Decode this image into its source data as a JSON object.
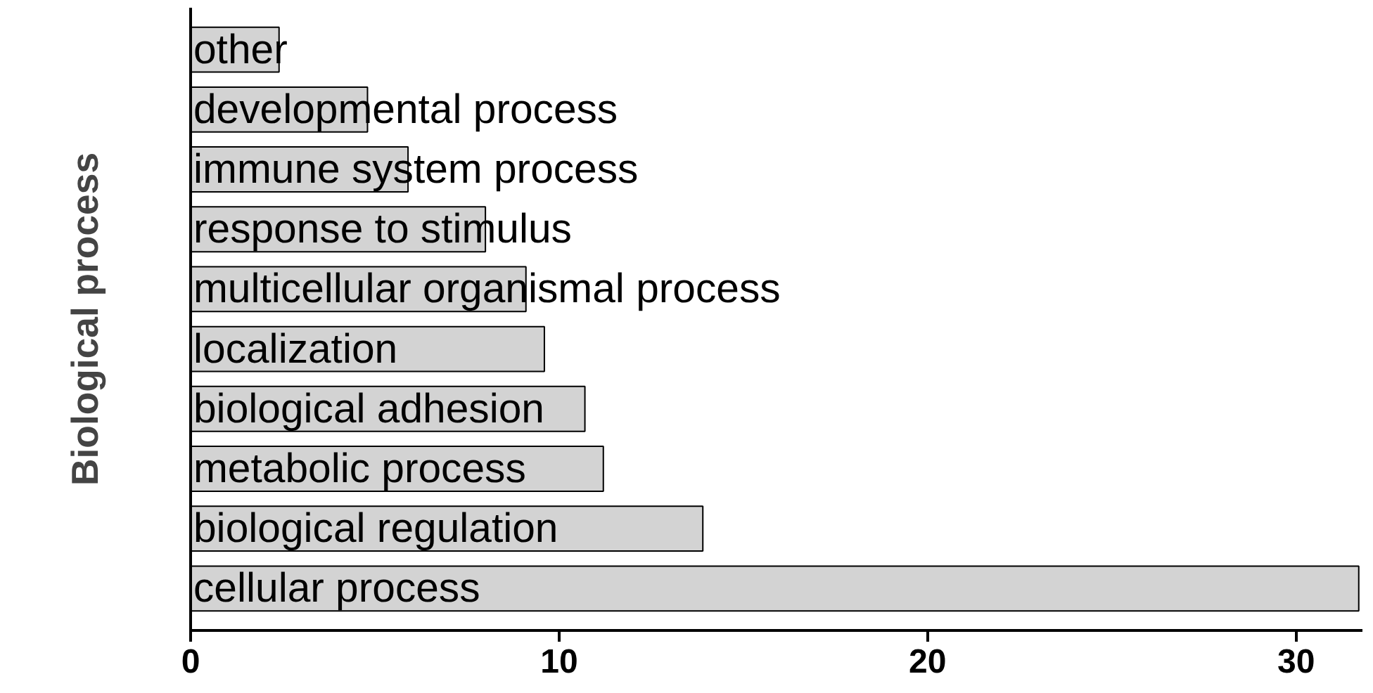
{
  "chart_data": {
    "type": "bar",
    "orientation": "horizontal",
    "ylabel": "Biological process",
    "categories": [
      "other",
      "developmental process",
      "immune system process",
      "response to stimulus",
      "multicellular organismal process",
      "localization",
      "biological adhesion",
      "metabolic process",
      "biological regulation",
      "cellular process"
    ],
    "values": [
      2.4,
      4.8,
      5.9,
      8.0,
      9.1,
      9.6,
      10.7,
      11.2,
      13.9,
      31.7
    ],
    "color": "#d3d3d3",
    "xlim": [
      0,
      31.8
    ],
    "xticks": [
      0,
      10,
      20,
      30
    ],
    "tick_labels": "x",
    "grid": false
  }
}
